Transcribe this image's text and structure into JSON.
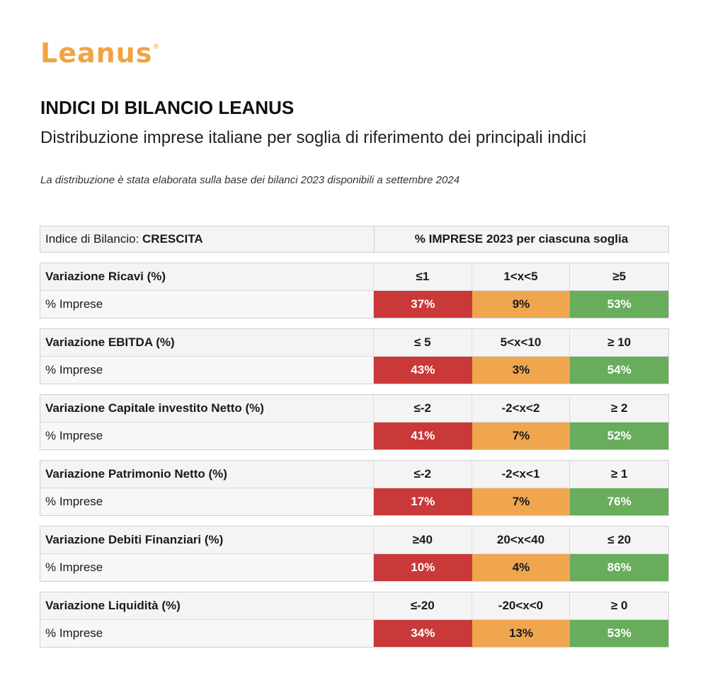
{
  "logo": {
    "text": "Leanus",
    "mark": "®"
  },
  "header": {
    "title": "INDICI DI BILANCIO LEANUS",
    "subtitle": "Distribuzione imprese italiane per soglia di riferimento dei principali indici",
    "note": "La distribuzione è stata elaborata sulla base dei bilanci 2023 disponibili a settembre 2024"
  },
  "table_header": {
    "label_prefix": "Indice di Bilancio: ",
    "label_value": "CRESCITA",
    "right": "% IMPRESE 2023 per ciascuna soglia"
  },
  "colors": {
    "low": "#c9393a",
    "mid": "#f0a64f",
    "high": "#67ad5b",
    "brand": "#f0a442"
  },
  "indices": [
    {
      "name": "Variazione Ricavi (%)",
      "row_label": "% Imprese",
      "thresholds": [
        "≤1",
        "1<x<5",
        "≥5"
      ],
      "values": [
        "37%",
        "9%",
        "53%"
      ]
    },
    {
      "name": "Variazione EBITDA (%)",
      "row_label": "% Imprese",
      "thresholds": [
        "≤ 5",
        "5<x<10",
        "≥ 10"
      ],
      "values": [
        "43%",
        "3%",
        "54%"
      ]
    },
    {
      "name": "Variazione Capitale investito Netto (%)",
      "row_label": "% Imprese",
      "thresholds": [
        "≤-2",
        "-2<x<2",
        "≥ 2"
      ],
      "values": [
        "41%",
        "7%",
        "52%"
      ]
    },
    {
      "name": "Variazione Patrimonio Netto (%)",
      "row_label": "% Imprese",
      "thresholds": [
        "≤-2",
        "-2<x<1",
        "≥ 1"
      ],
      "values": [
        "17%",
        "7%",
        "76%"
      ]
    },
    {
      "name": "Variazione Debiti Finanziari (%)",
      "row_label": "% Imprese",
      "thresholds": [
        "≥40",
        "20<x<40",
        "≤ 20"
      ],
      "values": [
        "10%",
        "4%",
        "86%"
      ]
    },
    {
      "name": "Variazione Liquidità (%)",
      "row_label": "% Imprese",
      "thresholds": [
        "≤-20",
        "-20<x<0",
        "≥ 0"
      ],
      "values": [
        "34%",
        "13%",
        "53%"
      ]
    }
  ]
}
